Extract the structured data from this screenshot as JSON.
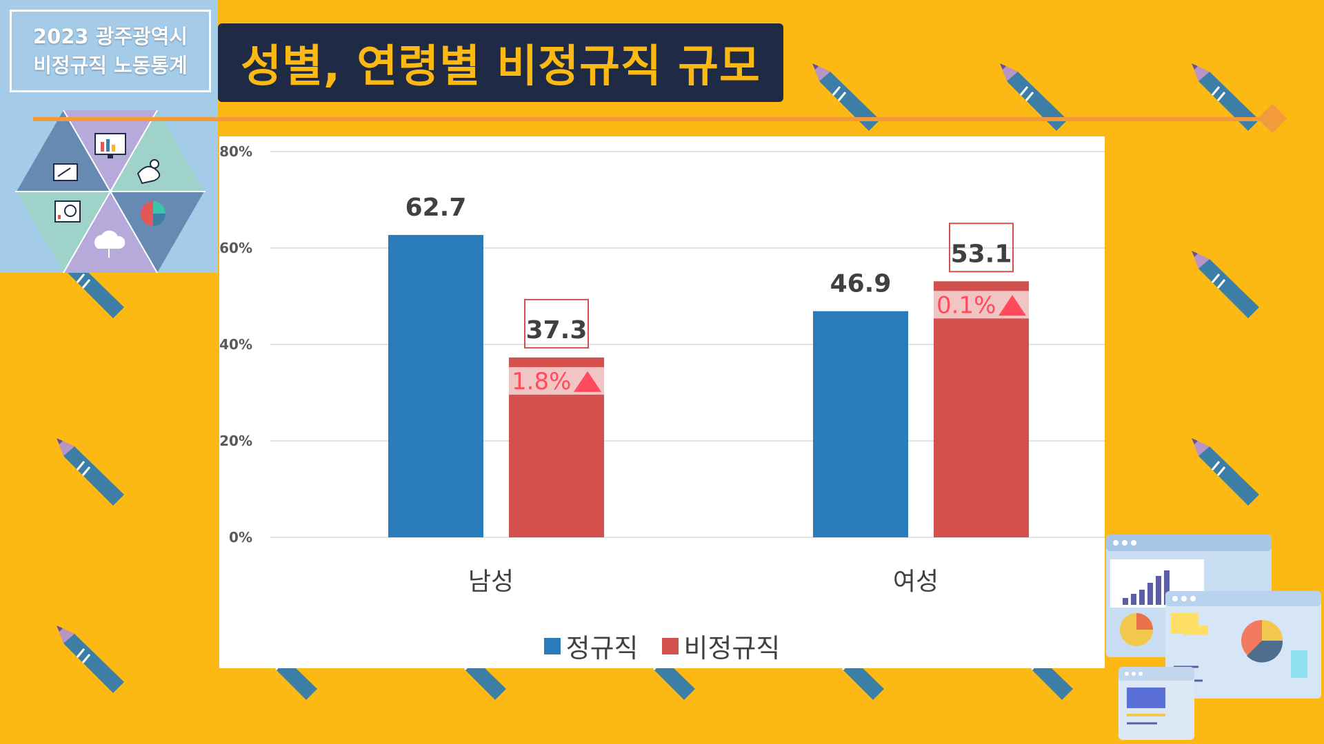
{
  "brand": {
    "line1": "2023 광주광역시",
    "line2": "비정규직 노동통계"
  },
  "title": "성별, 연령별 비정규직 규모",
  "icons": [
    "presentation-icon",
    "monitor-chart-icon",
    "handshake-icon",
    "analytics-report-icon",
    "cloud-network-icon",
    "pie-chart-icon"
  ],
  "colors": {
    "background": "#FDB913",
    "title_bg": "#1F2A44",
    "title_text": "#FDB913",
    "regular": "#2A7BBA",
    "nonregular": "#D2504D",
    "highlight": "#FF4B5C"
  },
  "chart_data": {
    "type": "bar",
    "categories": [
      "남성",
      "여성"
    ],
    "series": [
      {
        "name": "정규직",
        "values": [
          62.7,
          46.9
        ],
        "labels": [
          "62.7",
          "46.9"
        ]
      },
      {
        "name": "비정규직",
        "values": [
          37.3,
          53.1
        ],
        "labels": [
          "37.3",
          "53.1"
        ]
      }
    ],
    "annotations": [
      {
        "category": "남성",
        "series": "비정규직",
        "text": "1.8%",
        "direction": "up"
      },
      {
        "category": "여성",
        "series": "비정규직",
        "text": "0.1%",
        "direction": "up"
      }
    ],
    "ylim": [
      0,
      80
    ],
    "yticks": [
      0,
      20,
      40,
      60,
      80
    ],
    "ytick_labels": [
      "0%",
      "20%",
      "40%",
      "60%",
      "80%"
    ],
    "grid": true,
    "legend_position": "bottom"
  }
}
